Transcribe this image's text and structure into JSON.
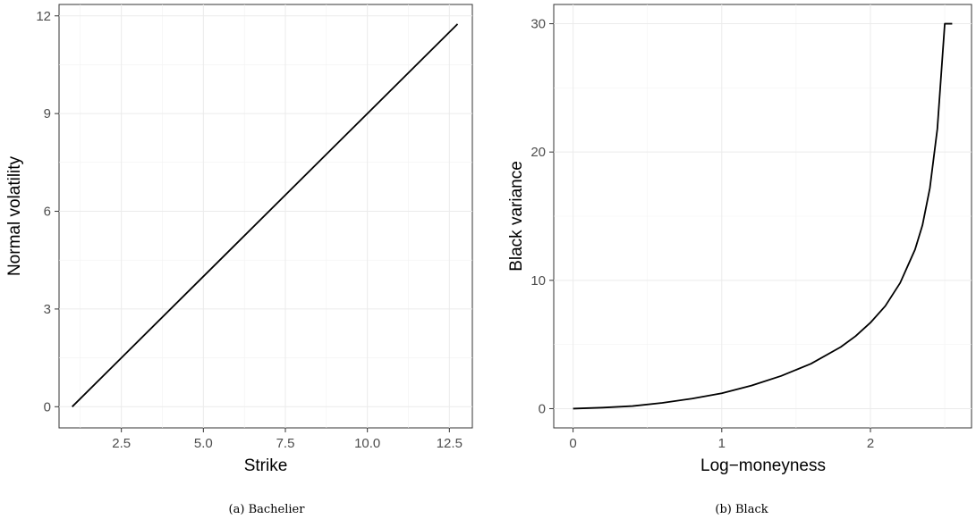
{
  "chart_data": [
    {
      "type": "line",
      "caption": "(a) Bachelier",
      "xlabel": "Strike",
      "ylabel": "Normal volatility",
      "xlim": [
        0.6,
        13.2
      ],
      "ylim": [
        -0.65,
        12.35
      ],
      "xticks": [
        2.5,
        5.0,
        7.5,
        10.0,
        12.5
      ],
      "xtick_labels": [
        "2.5",
        "5.0",
        "7.5",
        "10.0",
        "12.5"
      ],
      "yticks": [
        0,
        3,
        6,
        9,
        12
      ],
      "ytick_labels": [
        "0",
        "3",
        "6",
        "9",
        "12"
      ],
      "grid": true,
      "series": [
        {
          "x": [
            1.0,
            12.75
          ],
          "y": [
            0.0,
            11.75
          ]
        }
      ]
    },
    {
      "type": "line",
      "caption": "(b) Black",
      "xlabel": "Log−moneyness",
      "ylabel": "Black variance",
      "xlim": [
        -0.13,
        2.68
      ],
      "ylim": [
        -1.5,
        31.5
      ],
      "xticks": [
        0,
        1,
        2
      ],
      "xtick_labels": [
        "0",
        "1",
        "2"
      ],
      "yticks": [
        0,
        10,
        20,
        30
      ],
      "ytick_labels": [
        "0",
        "10",
        "20",
        "30"
      ],
      "grid": true,
      "series": [
        {
          "x": [
            0.0,
            0.2,
            0.4,
            0.6,
            0.8,
            1.0,
            1.2,
            1.4,
            1.6,
            1.8,
            1.9,
            2.0,
            2.1,
            2.2,
            2.3,
            2.35,
            2.4,
            2.45,
            2.5,
            2.55
          ],
          "y": [
            0.0,
            0.08,
            0.2,
            0.45,
            0.78,
            1.2,
            1.8,
            2.55,
            3.5,
            4.8,
            5.65,
            6.7,
            8.0,
            9.8,
            12.4,
            14.3,
            17.2,
            21.8,
            30.0,
            30.0
          ]
        }
      ]
    }
  ]
}
